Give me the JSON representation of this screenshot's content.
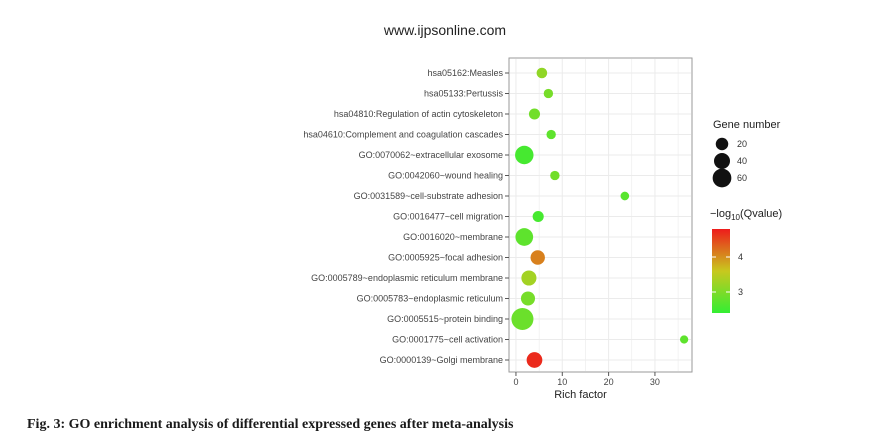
{
  "header": {
    "site_url": "www.ijpsonline.com"
  },
  "caption": "Fig. 3: GO enrichment analysis of differential expressed genes after meta-analysis",
  "chart_data": {
    "type": "scatter",
    "title": "",
    "xlabel": "Rich factor",
    "ylabel": "",
    "xlim": [
      -1.5,
      38
    ],
    "x_ticks": [
      0,
      10,
      20,
      30
    ],
    "grid": true,
    "categories": [
      "hsa05162:Measles",
      "hsa05133:Pertussis",
      "hsa04810:Regulation of actin cytoskeleton",
      "hsa04610:Complement and coagulation cascades",
      "GO:0070062~extracellular exosome",
      "GO:0042060~wound healing",
      "GO:0031589~cell-substrate adhesion",
      "GO:0016477~cell migration",
      "GO:0016020~membrane",
      "GO:0005925~focal adhesion",
      "GO:0005789~endoplasmic reticulum membrane",
      "GO:0005783~endoplasmic reticulum",
      "GO:0005515~protein binding",
      "GO:0001775~cell activation",
      "GO:0000139~Golgi membrane"
    ],
    "points": [
      {
        "term": "hsa05162:Measles",
        "rich_factor": 5.6,
        "gene_number": 12,
        "neg_log10_q": 3.15
      },
      {
        "term": "hsa05133:Pertussis",
        "rich_factor": 7.0,
        "gene_number": 8,
        "neg_log10_q": 2.95
      },
      {
        "term": "hsa04810:Regulation of actin cytoskeleton",
        "rich_factor": 4.0,
        "gene_number": 14,
        "neg_log10_q": 2.9
      },
      {
        "term": "hsa04610:Complement and coagulation cascades",
        "rich_factor": 7.6,
        "gene_number": 8,
        "neg_log10_q": 2.75
      },
      {
        "term": "GO:0070062~extracellular exosome",
        "rich_factor": 1.8,
        "gene_number": 58,
        "neg_log10_q": 2.55
      },
      {
        "term": "GO:0042060~wound healing",
        "rich_factor": 8.4,
        "gene_number": 8,
        "neg_log10_q": 2.9
      },
      {
        "term": "GO:0031589~cell-substrate adhesion",
        "rich_factor": 23.5,
        "gene_number": 6,
        "neg_log10_q": 2.7
      },
      {
        "term": "GO:0016477~cell migration",
        "rich_factor": 4.8,
        "gene_number": 14,
        "neg_log10_q": 2.55
      },
      {
        "term": "GO:0016020~membrane",
        "rich_factor": 1.8,
        "gene_number": 52,
        "neg_log10_q": 2.75
      },
      {
        "term": "GO:0005925~focal adhesion",
        "rich_factor": 4.7,
        "gene_number": 30,
        "neg_log10_q": 4.1
      },
      {
        "term": "GO:0005789~endoplasmic reticulum membrane",
        "rich_factor": 2.8,
        "gene_number": 34,
        "neg_log10_q": 3.3
      },
      {
        "term": "GO:0005783~endoplasmic reticulum",
        "rich_factor": 2.6,
        "gene_number": 28,
        "neg_log10_q": 2.95
      },
      {
        "term": "GO:0005515~protein binding",
        "rich_factor": 1.4,
        "gene_number": 90,
        "neg_log10_q": 2.85
      },
      {
        "term": "GO:0001775~cell activation",
        "rich_factor": 36.3,
        "gene_number": 5,
        "neg_log10_q": 2.75
      },
      {
        "term": "GO:0000139~Golgi membrane",
        "rich_factor": 4.0,
        "gene_number": 38,
        "neg_log10_q": 4.7
      }
    ],
    "legend_size": {
      "title": "Gene number",
      "entries": [
        {
          "label": "20",
          "value": 20
        },
        {
          "label": "40",
          "value": 40
        },
        {
          "label": "60",
          "value": 60
        }
      ]
    },
    "legend_color": {
      "title_prefix": "−log",
      "title_sub": "10",
      "title_suffix": "(Qvalue)",
      "min": 2.4,
      "max": 4.8,
      "ticks": [
        {
          "label": "3",
          "value": 3
        },
        {
          "label": "4",
          "value": 4
        }
      ],
      "color_low": "#33ee33",
      "color_high": "#ee1c1c"
    },
    "legend_placement": "right",
    "colors": {
      "panel_border": "#9a9a9a",
      "grid": "#ebebeb"
    }
  }
}
